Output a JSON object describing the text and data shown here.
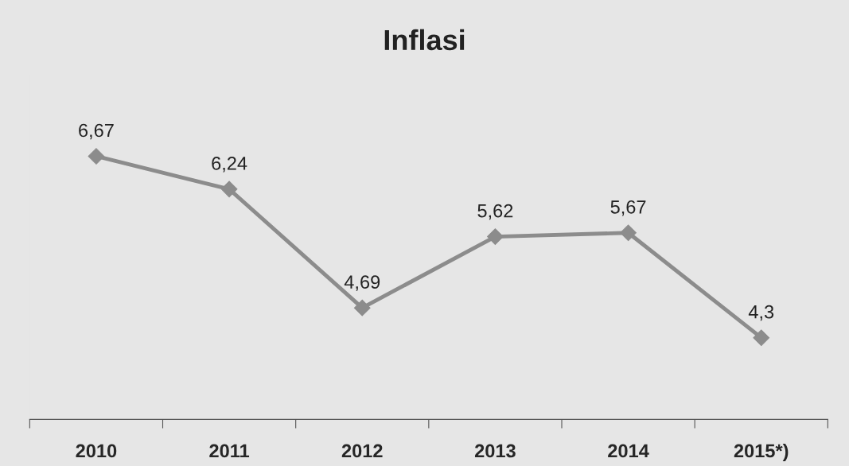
{
  "chart_data": {
    "type": "line",
    "title": "Inflasi",
    "categories": [
      "2010",
      "2011",
      "2012",
      "2013",
      "2014",
      "2015*)"
    ],
    "series": [
      {
        "color": "#8c8c8c",
        "values": [
          6.67,
          6.24,
          4.69,
          5.62,
          5.67,
          4.3
        ],
        "value_labels": [
          "6,67",
          "6,24",
          "4,69",
          "5,62",
          "5,67",
          "4,3"
        ]
      }
    ],
    "tick_labels": "x",
    "marker": "diamond",
    "grid": false,
    "legend": false
  }
}
